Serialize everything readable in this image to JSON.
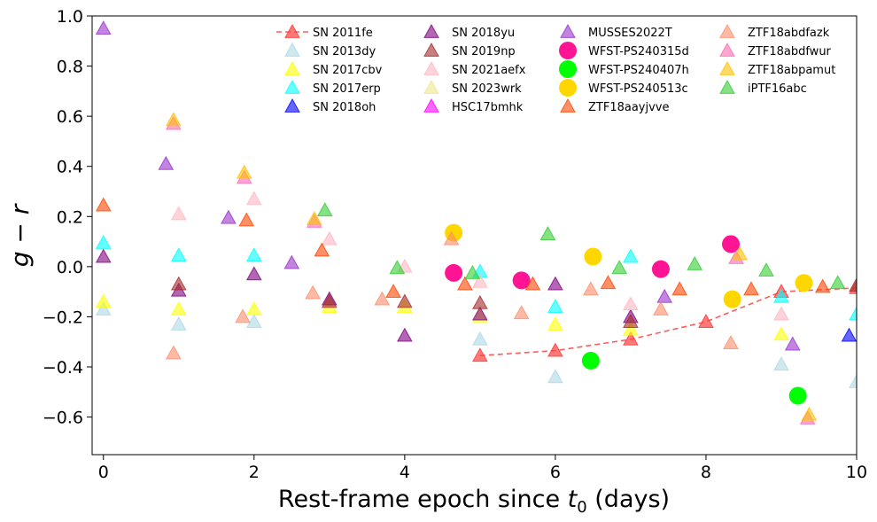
{
  "chart_data": {
    "type": "scatter",
    "title": "",
    "xlabel_prefix": "Rest-frame epoch since ",
    "xlabel_var": "t",
    "xlabel_sub": "0",
    "xlabel_suffix": " (days)",
    "ylabel": "g − r",
    "xlim": [
      -0.15,
      10
    ],
    "ylim": [
      -0.75,
      1.0
    ],
    "xticks": [
      0,
      2,
      4,
      6,
      8,
      10
    ],
    "xtick_labels": [
      "0",
      "2",
      "4",
      "6",
      "8",
      "10"
    ],
    "yticks": [
      -0.6,
      -0.4,
      -0.2,
      0.0,
      0.2,
      0.4,
      0.6,
      0.8,
      1.0
    ],
    "ytick_labels": [
      "−0.6",
      "−0.4",
      "−0.2",
      "0.0",
      "0.2",
      "0.4",
      "0.6",
      "0.8",
      "1.0"
    ],
    "legend_position": "top",
    "legend_columns": 4,
    "series": [
      {
        "name": "SN 2011fe",
        "color": "#ff4040",
        "marker": "triangle",
        "line": true,
        "alpha": 0.7,
        "points": [
          [
            5.0,
            -0.355
          ],
          [
            6.0,
            -0.335
          ],
          [
            7.0,
            -0.29
          ],
          [
            8.0,
            -0.22
          ],
          [
            9.0,
            -0.1
          ],
          [
            10.0,
            -0.085
          ]
        ]
      },
      {
        "name": "SN 2013dy",
        "color": "#add8e6",
        "marker": "triangle",
        "alpha": 0.6,
        "points": [
          [
            0.0,
            -0.17
          ],
          [
            1.0,
            -0.23
          ],
          [
            2.0,
            -0.22
          ],
          [
            5.0,
            -0.29
          ],
          [
            6.0,
            -0.44
          ],
          [
            9.0,
            -0.39
          ],
          [
            10.0,
            -0.46
          ]
        ]
      },
      {
        "name": "SN 2017cbv",
        "color": "#ffff00",
        "marker": "triangle",
        "alpha": 0.6,
        "points": [
          [
            0.0,
            -0.14
          ],
          [
            1.0,
            -0.17
          ],
          [
            2.0,
            -0.17
          ],
          [
            3.0,
            -0.16
          ],
          [
            4.0,
            -0.16
          ],
          [
            5.0,
            -0.2
          ],
          [
            6.0,
            -0.23
          ],
          [
            7.0,
            -0.25
          ],
          [
            9.0,
            -0.27
          ]
        ]
      },
      {
        "name": "SN 2017erp",
        "color": "#00ffff",
        "marker": "triangle",
        "alpha": 0.6,
        "points": [
          [
            0.0,
            0.095
          ],
          [
            1.0,
            0.045
          ],
          [
            2.0,
            0.045
          ],
          [
            5.0,
            -0.02
          ],
          [
            6.0,
            -0.16
          ],
          [
            7.0,
            0.04
          ],
          [
            9.0,
            -0.12
          ],
          [
            10.0,
            -0.19
          ]
        ]
      },
      {
        "name": "SN 2018oh",
        "color": "#0000ff",
        "marker": "triangle",
        "alpha": 0.6,
        "points": [
          [
            9.9,
            -0.275
          ]
        ]
      },
      {
        "name": "SN 2018yu",
        "color": "#800080",
        "marker": "triangle",
        "alpha": 0.6,
        "points": [
          [
            0.0,
            0.04
          ],
          [
            1.0,
            -0.095
          ],
          [
            2.0,
            -0.03
          ],
          [
            3.0,
            -0.13
          ],
          [
            4.0,
            -0.275
          ],
          [
            5.0,
            -0.19
          ],
          [
            6.0,
            -0.07
          ],
          [
            7.0,
            -0.2
          ]
        ]
      },
      {
        "name": "SN 2019np",
        "color": "#a52a2a",
        "marker": "triangle",
        "alpha": 0.6,
        "points": [
          [
            1.0,
            -0.07
          ],
          [
            3.0,
            -0.14
          ],
          [
            4.0,
            -0.14
          ],
          [
            5.0,
            -0.145
          ],
          [
            7.0,
            -0.22
          ],
          [
            10.0,
            -0.075
          ]
        ]
      },
      {
        "name": "SN 2021aefx",
        "color": "#ffb6c1",
        "marker": "triangle",
        "alpha": 0.6,
        "points": [
          [
            1.0,
            0.21
          ],
          [
            2.0,
            0.27
          ],
          [
            3.0,
            0.11
          ],
          [
            4.0,
            0.0
          ],
          [
            5.0,
            -0.06
          ],
          [
            7.0,
            -0.15
          ],
          [
            9.0,
            -0.19
          ]
        ]
      },
      {
        "name": "SN 2023wrk",
        "color": "#f0e68c",
        "marker": "triangle",
        "alpha": 0.6,
        "points": []
      },
      {
        "name": "HSC17bmhk",
        "color": "#ff00ff",
        "marker": "triangle",
        "alpha": 0.6,
        "points": []
      },
      {
        "name": "MUSSES2022T",
        "color": "#9932cc",
        "marker": "triangle",
        "alpha": 0.6,
        "points": [
          [
            0.0,
            0.95
          ],
          [
            0.83,
            0.41
          ],
          [
            1.66,
            0.195
          ],
          [
            2.5,
            0.015
          ],
          [
            7.45,
            -0.12
          ],
          [
            9.15,
            -0.31
          ]
        ]
      },
      {
        "name": "WFST-PS240315d",
        "color": "#ff1493",
        "marker": "circle",
        "alpha": 1.0,
        "points": [
          [
            4.65,
            -0.025
          ],
          [
            5.55,
            -0.055
          ],
          [
            7.4,
            -0.01
          ],
          [
            8.33,
            0.09
          ]
        ]
      },
      {
        "name": "WFST-PS240407h",
        "color": "#00ff00",
        "marker": "circle",
        "alpha": 1.0,
        "points": [
          [
            6.47,
            -0.375
          ],
          [
            9.22,
            -0.515
          ]
        ]
      },
      {
        "name": "WFST-PS240513c",
        "color": "#ffd700",
        "marker": "circle",
        "alpha": 1.0,
        "points": [
          [
            4.65,
            0.135
          ],
          [
            6.5,
            0.04
          ],
          [
            8.35,
            -0.13
          ],
          [
            9.3,
            -0.065
          ]
        ]
      },
      {
        "name": "ZTF18aayjvve",
        "color": "#ff4500",
        "marker": "triangle",
        "alpha": 0.6,
        "points": [
          [
            0.0,
            0.245
          ],
          [
            1.9,
            0.185
          ],
          [
            2.9,
            0.065
          ],
          [
            3.85,
            -0.1
          ],
          [
            4.8,
            -0.07
          ],
          [
            5.7,
            -0.07
          ],
          [
            6.7,
            -0.065
          ],
          [
            7.65,
            -0.09
          ],
          [
            8.6,
            -0.09
          ],
          [
            9.55,
            -0.08
          ]
        ]
      },
      {
        "name": "ZTF18abdfazk",
        "color": "#ff8c69",
        "marker": "triangle",
        "alpha": 0.6,
        "points": [
          [
            0.93,
            -0.345
          ],
          [
            1.85,
            -0.2
          ],
          [
            2.78,
            -0.105
          ],
          [
            3.7,
            -0.13
          ],
          [
            4.62,
            0.11
          ],
          [
            5.55,
            -0.185
          ],
          [
            6.47,
            -0.09
          ],
          [
            7.4,
            -0.17
          ],
          [
            8.33,
            -0.305
          ]
        ]
      },
      {
        "name": "ZTF18abdfwur",
        "color": "#ff69b4",
        "marker": "triangle",
        "alpha": 0.6,
        "points": [
          [
            0.93,
            0.57
          ],
          [
            1.87,
            0.355
          ],
          [
            2.8,
            0.18
          ],
          [
            8.4,
            0.035
          ],
          [
            9.35,
            -0.605
          ]
        ]
      },
      {
        "name": "ZTF18abpamut",
        "color": "#ffc000",
        "marker": "triangle",
        "alpha": 0.6,
        "points": [
          [
            0.93,
            0.585
          ],
          [
            1.87,
            0.375
          ],
          [
            2.8,
            0.19
          ],
          [
            8.45,
            0.05
          ],
          [
            9.37,
            -0.59
          ]
        ]
      },
      {
        "name": "iPTF16abc",
        "color": "#32cd32",
        "marker": "triangle",
        "alpha": 0.6,
        "points": [
          [
            2.94,
            0.225
          ],
          [
            3.9,
            -0.005
          ],
          [
            4.9,
            -0.025
          ],
          [
            5.9,
            0.13
          ],
          [
            6.85,
            -0.005
          ],
          [
            7.85,
            0.01
          ],
          [
            8.8,
            -0.015
          ],
          [
            9.75,
            -0.065
          ]
        ]
      }
    ]
  }
}
